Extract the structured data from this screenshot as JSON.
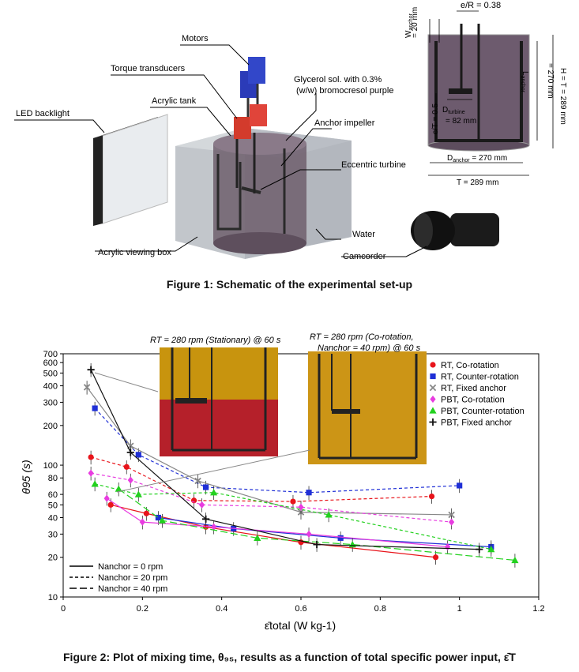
{
  "figure1": {
    "caption": "Figure 1: Schematic of the experimental set-up",
    "callouts": {
      "led": "LED backlight",
      "motors": "Motors",
      "torque": "Torque transducers",
      "tank": "Acrylic tank",
      "glycerol_1": "Glycerol sol. with 0.3%",
      "glycerol_2": "(w/w) bromocresol purple",
      "anchor": "Anchor impeller",
      "turbine": "Eccentric turbine",
      "water": "Water",
      "box": "Acrylic viewing box",
      "camcorder": "Camcorder"
    },
    "dimensions": {
      "eR": "e/R = 0.38",
      "w_anchor_1": "W",
      "w_anchor_sub": "anchor",
      "w_anchor_2": "= 20 mm",
      "l_anchor_1": "L",
      "l_anchor_sub": "anchor",
      "l_anchor_2": "= 270 mm",
      "H": "H = T = 289 mm",
      "cT": "c/T = 0.5",
      "d_turbine_1": "D",
      "d_turbine_sub": "turbine",
      "d_turbine_2": "= 82 mm",
      "d_anchor_1": "D",
      "d_anchor_sub": "anchor",
      "d_anchor_2": " = 270 mm",
      "T": "T = 289 mm"
    }
  },
  "figure2": {
    "caption": "Figure 2: Plot of mixing time, θ₉₅, results as a function of total specific power input, ε̄T",
    "insets": {
      "left_title": "RT = 280 rpm (Stationary) @ 60 s",
      "right_title_1": "RT = 280 rpm (Co-rotation,",
      "right_title_2": "Nanchor = 40 rpm) @ 60 s"
    },
    "line_key": [
      {
        "label": "Nanchor = 0 rpm",
        "dash": "none"
      },
      {
        "label": "Nanchor = 20 rpm",
        "dash": "4,3"
      },
      {
        "label": "Nanchor = 40 rpm",
        "dash": "9,4"
      }
    ]
  },
  "chart_data": {
    "type": "scatter",
    "title": "",
    "xlabel": "ε̄total (W kg-1)",
    "ylabel": "θ95 (s)",
    "xlim": [
      0,
      1.2
    ],
    "ylim": [
      10,
      700
    ],
    "yscale": "log",
    "xticks": [
      "0",
      "0.2",
      "0.4",
      "0.6",
      "0.8",
      "1",
      "1.2"
    ],
    "yticks": [
      {
        "v": 10,
        "label": "10"
      },
      {
        "v": 20,
        "label": "20"
      },
      {
        "v": 30,
        "label": "30"
      },
      {
        "v": 40,
        "label": "40"
      },
      {
        "v": 50,
        "label": "50"
      },
      {
        "v": 60,
        "label": "60"
      },
      {
        "v": 80,
        "label": "80"
      },
      {
        "v": 100,
        "label": "100"
      },
      {
        "v": 200,
        "label": "200"
      },
      {
        "v": 300,
        "label": "300"
      },
      {
        "v": 400,
        "label": "400"
      },
      {
        "v": 500,
        "label": "500"
      },
      {
        "v": 600,
        "label": "600"
      },
      {
        "v": 700,
        "label": "700"
      }
    ],
    "grid": false,
    "legend_position": "top-right",
    "series": [
      {
        "name": "RT, Co-rotation",
        "color": "#e8141b",
        "marker": "circle",
        "lines": [
          {
            "dash": "solid",
            "points": [
              [
                0.12,
                50
              ],
              [
                0.21,
                43
              ],
              [
                0.36,
                34
              ],
              [
                0.6,
                26
              ],
              [
                0.94,
                20
              ]
            ]
          },
          {
            "dash": "4,3",
            "points": [
              [
                0.07,
                115
              ],
              [
                0.16,
                97
              ],
              [
                0.33,
                54
              ],
              [
                0.58,
                53
              ],
              [
                0.93,
                58
              ]
            ]
          }
        ]
      },
      {
        "name": "RT, Counter-rotation",
        "color": "#1f2fd6",
        "marker": "square",
        "lines": [
          {
            "dash": "solid",
            "points": [
              [
                0.24,
                40
              ],
              [
                0.43,
                33
              ],
              [
                0.7,
                28
              ],
              [
                1.08,
                24
              ]
            ]
          },
          {
            "dash": "4,3",
            "points": [
              [
                0.08,
                270
              ],
              [
                0.19,
                120
              ],
              [
                0.36,
                68
              ],
              [
                0.62,
                62
              ],
              [
                1.0,
                70
              ]
            ]
          }
        ]
      },
      {
        "name": "RT, Fixed anchor",
        "color": "#888888",
        "marker": "x",
        "lines": [
          {
            "dash": "solid",
            "points": [
              [
                0.06,
                390
              ],
              [
                0.17,
                140
              ],
              [
                0.34,
                76
              ],
              [
                0.6,
                44
              ],
              [
                0.98,
                42
              ]
            ]
          }
        ]
      },
      {
        "name": "PBT, Co-rotation",
        "color": "#e83ce0",
        "marker": "diamond",
        "lines": [
          {
            "dash": "solid",
            "points": [
              [
                0.11,
                56
              ],
              [
                0.2,
                37
              ],
              [
                0.38,
                34
              ],
              [
                0.62,
                30
              ],
              [
                0.97,
                24
              ]
            ]
          },
          {
            "dash": "4,3",
            "points": [
              [
                0.07,
                87
              ],
              [
                0.17,
                77
              ],
              [
                0.35,
                50
              ],
              [
                0.6,
                48
              ],
              [
                0.98,
                37
              ]
            ]
          }
        ]
      },
      {
        "name": "PBT, Counter-rotation",
        "color": "#22d11e",
        "marker": "triangle",
        "lines": [
          {
            "dash": "9,4",
            "points": [
              [
                0.14,
                66
              ],
              [
                0.25,
                38
              ],
              [
                0.49,
                28
              ],
              [
                0.73,
                25
              ],
              [
                1.14,
                19
              ]
            ]
          },
          {
            "dash": "4,3",
            "points": [
              [
                0.08,
                72
              ],
              [
                0.19,
                60
              ],
              [
                0.38,
                62
              ],
              [
                0.67,
                42
              ],
              [
                1.08,
                23
              ]
            ]
          }
        ]
      },
      {
        "name": "PBT, Fixed anchor",
        "color": "#111111",
        "marker": "plus",
        "lines": [
          {
            "dash": "solid",
            "points": [
              [
                0.07,
                530
              ],
              [
                0.17,
                125
              ],
              [
                0.36,
                39
              ],
              [
                0.64,
                25
              ],
              [
                1.05,
                23
              ]
            ]
          }
        ]
      }
    ]
  }
}
